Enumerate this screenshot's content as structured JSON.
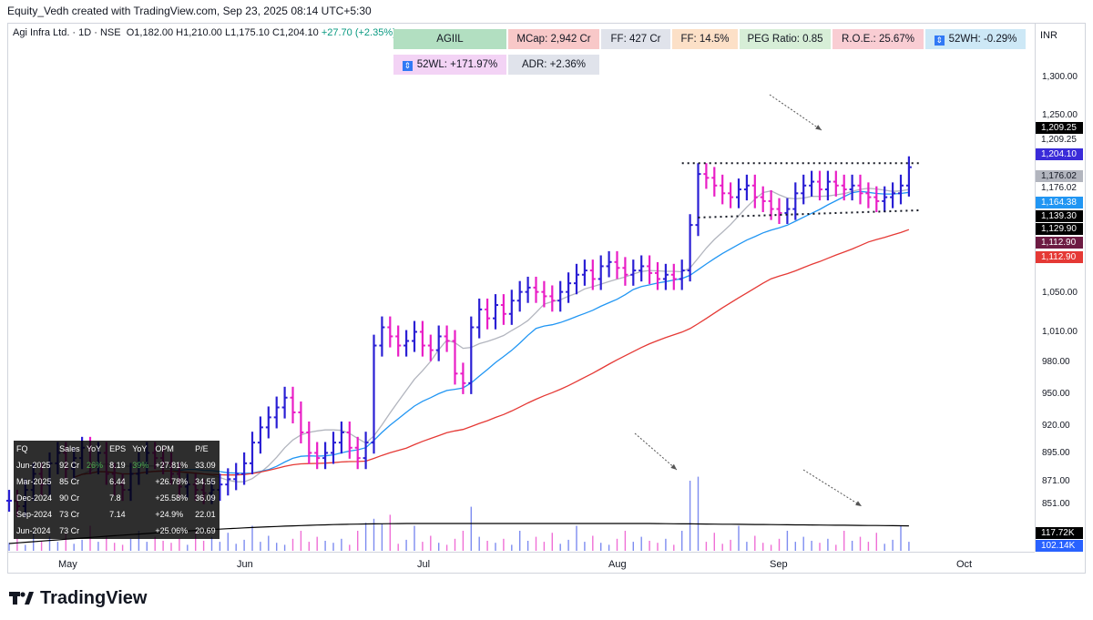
{
  "header": {
    "created_line": "Equity_Vedh created with TradingView.com, Sep 23, 2025 08:14 UTC+5:30",
    "symbol": "Agi Infra Ltd. · 1D · NSE",
    "ohlc": "O1,182.00 H1,210.00 L1,175.10 C1,204.10",
    "change": "+27.70 (+2.35%)"
  },
  "info_boxes": [
    {
      "id": "ticker",
      "text": "AGIIL",
      "bg": "#b2dfc1"
    },
    {
      "id": "mcap",
      "text": "MCap: 2,942 Cr",
      "bg": "#f8c8c8"
    },
    {
      "id": "ff-cr",
      "text": "FF: 427 Cr",
      "bg": "#e0e3eb"
    },
    {
      "id": "ff-pct",
      "text": "FF: 14.5%",
      "bg": "#fce0c7"
    },
    {
      "id": "peg",
      "text": "PEG Ratio: 0.85",
      "bg": "#d7eed7"
    },
    {
      "id": "roe",
      "text": "R.O.E.: 25.67%",
      "bg": "#f9cdd3"
    },
    {
      "id": "52wh",
      "text": "52WH: -0.29%",
      "bg": "#cde8f6",
      "icon": "arrow-up-down-icon"
    },
    {
      "id": "52wl",
      "text": "52WL: +171.97%",
      "bg": "#f3d3f5",
      "icon": "arrow-up-down-icon"
    },
    {
      "id": "adr",
      "text": "ADR: +2.36%",
      "bg": "#e0e3eb"
    }
  ],
  "currency": "INR",
  "y_ticks": [
    "1,300.00",
    "1,250.00",
    "1,050.00",
    "1,010.00",
    "980.00",
    "950.00",
    "920.00",
    "895.00",
    "871.00",
    "851.00"
  ],
  "price_labels": [
    {
      "text": "1,209.25",
      "bg": "#000000",
      "fg": "#ffffff"
    },
    {
      "text": "1,209.25",
      "bg": "#ffffff",
      "fg": "#131722"
    },
    {
      "text": "1,204.10",
      "bg": "#3a2bd9",
      "fg": "#ffffff"
    },
    {
      "text": "1,176.02",
      "bg": "#b2b5be",
      "fg": "#131722"
    },
    {
      "text": "1,176.02",
      "bg": "#ffffff",
      "fg": "#131722"
    },
    {
      "text": "1,164.38",
      "bg": "#2196f3",
      "fg": "#ffffff"
    },
    {
      "text": "1,139.30",
      "bg": "#000000",
      "fg": "#ffffff"
    },
    {
      "text": "1,129.90",
      "bg": "#000000",
      "fg": "#ffffff"
    },
    {
      "text": "1,112.90",
      "bg": "#6d1b43",
      "fg": "#ffffff"
    },
    {
      "text": "1,112.90",
      "bg": "#e53935",
      "fg": "#ffffff"
    }
  ],
  "volume_labels": [
    {
      "text": "117.72K",
      "bg": "#000000",
      "fg": "#ffffff"
    },
    {
      "text": "102.14K",
      "bg": "#2962ff",
      "fg": "#ffffff"
    }
  ],
  "x_ticks": [
    "May",
    "Jun",
    "Jul",
    "Aug",
    "Sep",
    "Oct"
  ],
  "fund_table": {
    "headers": [
      "FQ",
      "Sales",
      "YoY",
      "EPS",
      "YoY",
      "OPM",
      "P/E"
    ],
    "rows": [
      [
        "Jun-2025",
        "92 Cr",
        "26%",
        "8.19",
        "39%",
        "+27.81%",
        "33.09"
      ],
      [
        "Mar-2025",
        "85 Cr",
        "",
        "6.44",
        "",
        "+26.78%",
        "34.55"
      ],
      [
        "Dec-2024",
        "90 Cr",
        "",
        "7.8",
        "",
        "+25.58%",
        "36.09"
      ],
      [
        "Sep-2024",
        "73 Cr",
        "",
        "7.14",
        "",
        "+24.9%",
        "22.01"
      ],
      [
        "Jun-2024",
        "73 Cr",
        "",
        "",
        "",
        "+25.06%",
        "20.69"
      ]
    ]
  },
  "brand": "TradingView",
  "colors": {
    "up_bar": "#2a1fd4",
    "down_bar": "#e91ec6",
    "sma_fast": "#b2b5be",
    "sma_mid": "#2196f3",
    "sma_slow": "#e53935",
    "vol_ma": "#000000"
  },
  "chart_data": {
    "type": "ohlc",
    "timeframe": "1D",
    "x_labels": [
      "May",
      "Jun",
      "Jul",
      "Aug",
      "Sep",
      "Oct"
    ],
    "price_axis": "log",
    "ylim": [
      830,
      1330
    ],
    "series": [
      {
        "name": "price",
        "ohlc_closes_approx": [
          835,
          830,
          845,
          860,
          850,
          870,
          880,
          865,
          875,
          885,
          870,
          880,
          860,
          850,
          845,
          860,
          870,
          880,
          875,
          870,
          860,
          848,
          850,
          845,
          842,
          845,
          850,
          855,
          860,
          870,
          890,
          905,
          915,
          925,
          935,
          920,
          900,
          880,
          875,
          880,
          890,
          900,
          885,
          875,
          890,
          990,
          1010,
          1000,
          990,
          995,
          1005,
          990,
          985,
          1000,
          995,
          960,
          950,
          1010,
          1030,
          1020,
          1035,
          1025,
          1040,
          1050,
          1055,
          1050,
          1045,
          1040,
          1050,
          1060,
          1070,
          1075,
          1065,
          1080,
          1085,
          1078,
          1070,
          1075,
          1080,
          1072,
          1065,
          1070,
          1065,
          1075,
          1130,
          1195,
          1190,
          1180,
          1170,
          1165,
          1175,
          1180,
          1165,
          1160,
          1150,
          1145,
          1150,
          1170,
          1180,
          1185,
          1175,
          1185,
          1180,
          1175,
          1180,
          1170,
          1165,
          1160,
          1165,
          1170,
          1180,
          1204
        ]
      },
      {
        "name": "SMA fast",
        "last": 1176.02
      },
      {
        "name": "SMA mid",
        "last": 1164.38
      },
      {
        "name": "SMA slow",
        "last": 1112.9
      }
    ],
    "levels": {
      "resistance": 1209.25,
      "support": 1139.3
    },
    "volume": {
      "last": "102.14K",
      "ma_last": "117.72K"
    }
  }
}
